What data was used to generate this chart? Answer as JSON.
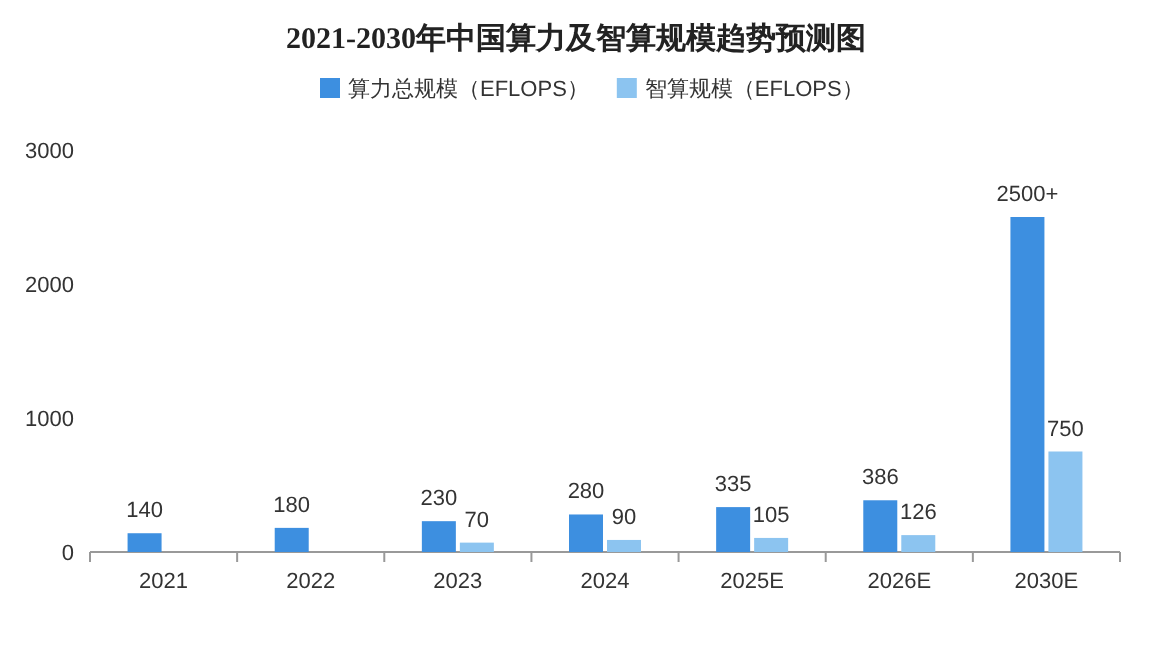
{
  "chart_data": {
    "type": "bar",
    "title": "2021-2030年中国算力及智算规模趋势预测图",
    "categories": [
      "2021",
      "2022",
      "2023",
      "2024",
      "2025E",
      "2026E",
      "2030E"
    ],
    "series": [
      {
        "name": "算力总规模（EFLOPS）",
        "color": "#3d8fe0",
        "values": [
          140,
          180,
          230,
          280,
          335,
          386,
          2500
        ],
        "value_labels": [
          "140",
          "180",
          "230",
          "280",
          "335",
          "386",
          "2500+"
        ]
      },
      {
        "name": "智算规模（EFLOPS）",
        "color": "#8cc4f0",
        "values": [
          null,
          null,
          70,
          90,
          105,
          126,
          750
        ],
        "value_labels": [
          null,
          null,
          "70",
          "90",
          "105",
          "126",
          "750"
        ]
      }
    ],
    "ylim": [
      0,
      3000
    ],
    "yticks": [
      0,
      1000,
      2000,
      3000
    ],
    "grid": false,
    "legend": "top"
  }
}
